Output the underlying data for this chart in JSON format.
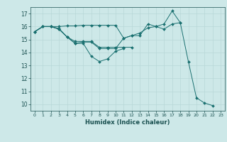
{
  "xlabel": "Humidex (Indice chaleur)",
  "bg_color": "#cde8e8",
  "grid_color": "#b8d8d8",
  "line_color": "#1a7070",
  "xlim": [
    -0.5,
    23.5
  ],
  "ylim": [
    9.5,
    17.5
  ],
  "xticks": [
    0,
    1,
    2,
    3,
    4,
    5,
    6,
    7,
    8,
    9,
    10,
    11,
    12,
    13,
    14,
    15,
    16,
    17,
    18,
    19,
    20,
    21,
    22,
    23
  ],
  "yticks": [
    10,
    11,
    12,
    13,
    14,
    15,
    16,
    17
  ],
  "s1_x": [
    0,
    1,
    2,
    3,
    4,
    5,
    6,
    7,
    8,
    9,
    10,
    11
  ],
  "s1_y": [
    15.6,
    16.0,
    16.0,
    15.8,
    15.2,
    14.7,
    14.7,
    13.7,
    13.3,
    13.5,
    14.1,
    14.3
  ],
  "s2_x": [
    0,
    1,
    2,
    3,
    4,
    5,
    6,
    7,
    8,
    9,
    10,
    11,
    12
  ],
  "s2_y": [
    15.6,
    16.0,
    16.0,
    15.85,
    15.2,
    14.85,
    14.85,
    14.85,
    14.4,
    14.4,
    14.4,
    14.4,
    14.4
  ],
  "s3_x": [
    0,
    1,
    2,
    3,
    4,
    5,
    6,
    7,
    8,
    9,
    10,
    11,
    12,
    13,
    14,
    15,
    16,
    17,
    18
  ],
  "s3_y": [
    15.6,
    16.0,
    16.0,
    16.0,
    16.05,
    16.05,
    16.1,
    16.1,
    16.1,
    16.1,
    16.1,
    15.1,
    15.3,
    15.3,
    16.2,
    16.0,
    15.8,
    16.2,
    16.3
  ],
  "s4_x": [
    0,
    1,
    2,
    3,
    4,
    5,
    6,
    7,
    8,
    9,
    10,
    11,
    12,
    13,
    14,
    15,
    16,
    17,
    18,
    19,
    20,
    21,
    22
  ],
  "s4_y": [
    15.6,
    16.0,
    16.0,
    15.8,
    15.2,
    14.7,
    14.8,
    14.8,
    14.3,
    14.3,
    14.3,
    15.1,
    15.3,
    15.5,
    15.9,
    16.0,
    16.2,
    17.2,
    16.3,
    13.3,
    10.5,
    10.1,
    9.9
  ]
}
